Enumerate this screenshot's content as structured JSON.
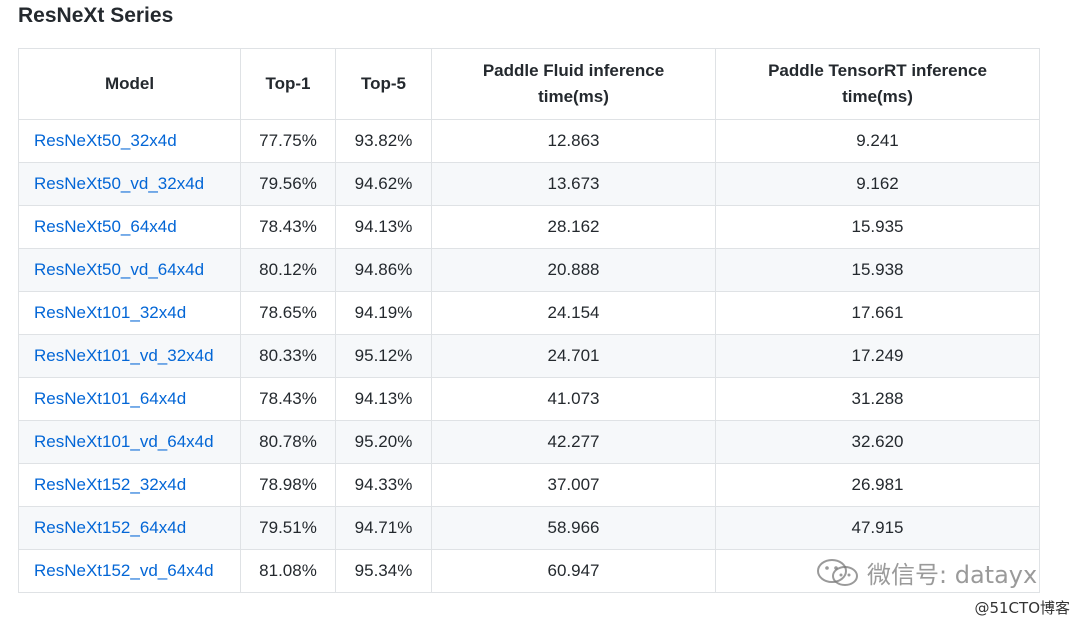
{
  "heading": "ResNeXt Series",
  "table": {
    "headers": {
      "model": "Model",
      "top1": "Top-1",
      "top5": "Top-5",
      "fluid_line1": "Paddle Fluid inference",
      "fluid_line2": "time(ms)",
      "trt_line1": "Paddle TensorRT inference",
      "trt_line2": "time(ms)"
    },
    "rows": [
      {
        "model": "ResNeXt50_32x4d",
        "top1": "77.75%",
        "top5": "93.82%",
        "fluid": "12.863",
        "trt": "9.241"
      },
      {
        "model": "ResNeXt50_vd_32x4d",
        "top1": "79.56%",
        "top5": "94.62%",
        "fluid": "13.673",
        "trt": "9.162"
      },
      {
        "model": "ResNeXt50_64x4d",
        "top1": "78.43%",
        "top5": "94.13%",
        "fluid": "28.162",
        "trt": "15.935"
      },
      {
        "model": "ResNeXt50_vd_64x4d",
        "top1": "80.12%",
        "top5": "94.86%",
        "fluid": "20.888",
        "trt": "15.938"
      },
      {
        "model": "ResNeXt101_32x4d",
        "top1": "78.65%",
        "top5": "94.19%",
        "fluid": "24.154",
        "trt": "17.661"
      },
      {
        "model": "ResNeXt101_vd_32x4d",
        "top1": "80.33%",
        "top5": "95.12%",
        "fluid": "24.701",
        "trt": "17.249"
      },
      {
        "model": "ResNeXt101_64x4d",
        "top1": "78.43%",
        "top5": "94.13%",
        "fluid": "41.073",
        "trt": "31.288"
      },
      {
        "model": "ResNeXt101_vd_64x4d",
        "top1": "80.78%",
        "top5": "95.20%",
        "fluid": "42.277",
        "trt": "32.620"
      },
      {
        "model": "ResNeXt152_32x4d",
        "top1": "78.98%",
        "top5": "94.33%",
        "fluid": "37.007",
        "trt": "26.981"
      },
      {
        "model": "ResNeXt152_64x4d",
        "top1": "79.51%",
        "top5": "94.71%",
        "fluid": "58.966",
        "trt": "47.915"
      },
      {
        "model": "ResNeXt152_vd_64x4d",
        "top1": "81.08%",
        "top5": "95.34%",
        "fluid": "60.947",
        "trt": ""
      }
    ]
  },
  "watermark": {
    "icon": "wechat-icon",
    "text": "微信号: datayx"
  },
  "site_mark": "@51CTO博客"
}
